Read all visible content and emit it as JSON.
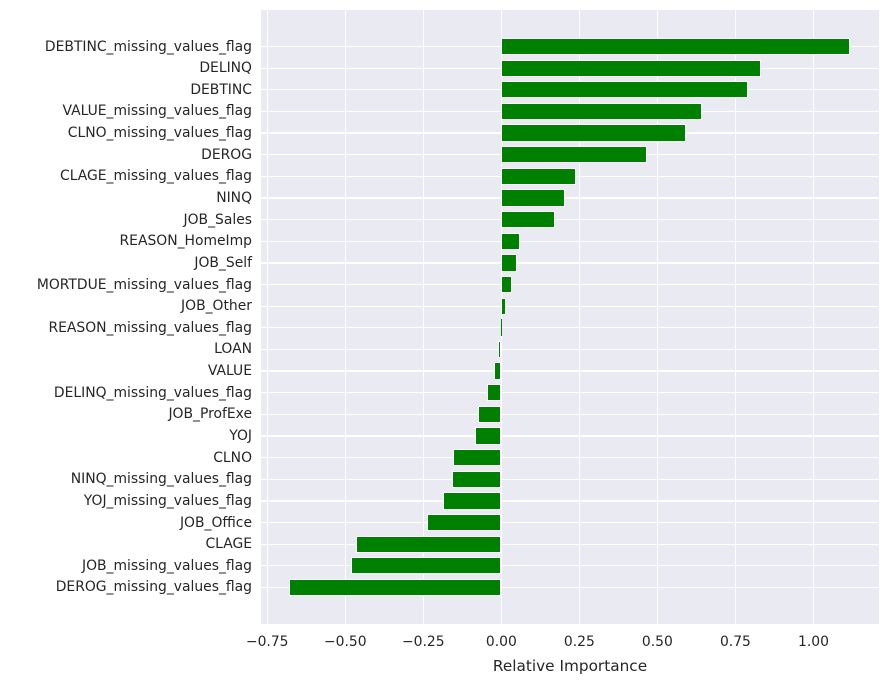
{
  "chart_data": {
    "type": "bar",
    "orientation": "horizontal",
    "title": "",
    "xlabel": "Relative Importance",
    "ylabel": "",
    "legend": "none",
    "grid": true,
    "bar_color": "#008000",
    "plot_background": "#eaeaf2",
    "grid_color": "#ffffff",
    "text_color": "#262626",
    "xlim": [
      -0.77,
      1.21
    ],
    "x_ticks": [
      -0.75,
      -0.5,
      -0.25,
      0,
      0.25,
      0.5,
      0.75,
      1.0
    ],
    "x_tick_labels": [
      "−0.75",
      "−0.50",
      "−0.25",
      "0.00",
      "0.25",
      "0.50",
      "0.75",
      "1.00"
    ],
    "categories": [
      "DEBTINC_missing_values_flag",
      "DELINQ",
      "DEBTINC",
      "VALUE_missing_values_flag",
      "CLNO_missing_values_flag",
      "DEROG",
      "CLAGE_missing_values_flag",
      "NINQ",
      "JOB_Sales",
      "REASON_HomeImp",
      "JOB_Self",
      "MORTDUE_missing_values_flag",
      "JOB_Other",
      "REASON_missing_values_flag",
      "LOAN",
      "VALUE",
      "DELINQ_missing_values_flag",
      "JOB_ProfExe",
      "YOJ",
      "CLNO",
      "NINQ_missing_values_flag",
      "YOJ_missing_values_flag",
      "JOB_Office",
      "CLAGE",
      "JOB_missing_values_flag",
      "DEROG_missing_values_flag"
    ],
    "values": [
      1.118,
      0.833,
      0.79,
      0.643,
      0.592,
      0.466,
      0.239,
      0.204,
      0.171,
      0.061,
      0.05,
      0.034,
      0.016,
      0.001,
      -0.012,
      -0.025,
      -0.046,
      -0.075,
      -0.085,
      -0.154,
      -0.157,
      -0.188,
      -0.237,
      -0.466,
      -0.481,
      -0.679
    ]
  }
}
